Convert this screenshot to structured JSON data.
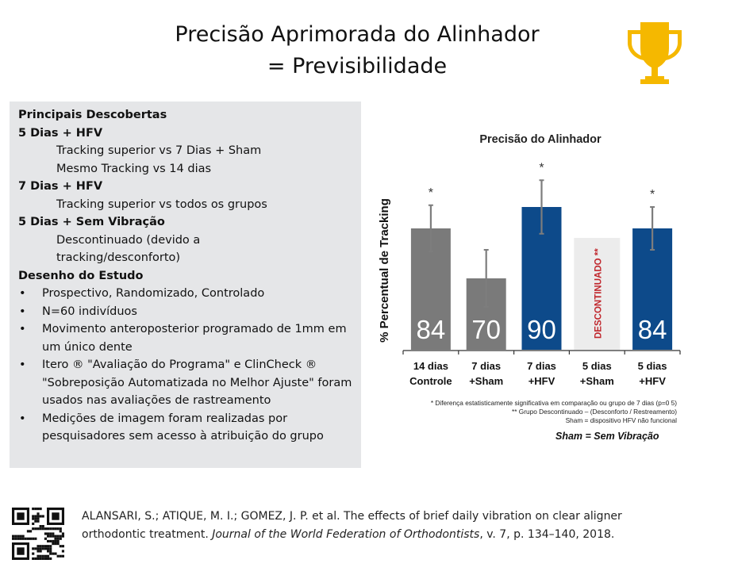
{
  "slide": {
    "title_line1": "Precisão Aprimorada do Alinhador",
    "title_line2": "= Previsibilidade",
    "icon": "trophy-icon",
    "accent_color": "#f5b800"
  },
  "findings": {
    "heading": "Principais Descobertas",
    "groups": [
      {
        "label": "5 Dias + HFV",
        "lines": [
          "Tracking superior vs 7 Dias + Sham",
          "Mesmo Tracking vs 14 dias"
        ]
      },
      {
        "label": "7 Dias + HFV",
        "lines": [
          "Tracking superior vs todos os grupos"
        ]
      },
      {
        "label": "5 Dias + Sem Vibração",
        "lines": [
          "Descontinuado (devido a",
          "tracking/desconforto)"
        ]
      }
    ],
    "design_heading": "Desenho do Estudo",
    "design_bullets": [
      "Prospectivo, Randomizado, Controlado",
      "N=60 indivíduos",
      "Movimento anteroposterior programado de 1mm em um único dente",
      "Itero ® \"Avaliação do Programa\" e ClinCheck ® \"Sobreposição Automatizada no Melhor Ajuste\" foram usados nas avaliações de rastreamento",
      "Medições de imagem foram realizadas por pesquisadores sem acesso à atribuição do grupo"
    ]
  },
  "chart_data": {
    "type": "bar",
    "title": "Precisão do Alinhador",
    "xlabel": "",
    "ylabel": "% Percentual de Tracking",
    "ylim": [
      50,
      100
    ],
    "grid": false,
    "categories": [
      {
        "line1": "14 dias",
        "line2": "Controle"
      },
      {
        "line1": "7 dias",
        "line2": "+Sham"
      },
      {
        "line1": "7 dias",
        "line2": "+HFV"
      },
      {
        "line1": "5 dias",
        "line2": "+Sham"
      },
      {
        "line1": "5 dias",
        "line2": "+HFV"
      }
    ],
    "values": [
      84,
      70,
      90,
      null,
      84
    ],
    "value_labels": [
      "84",
      "70",
      "90",
      "",
      "84"
    ],
    "error": [
      6.5,
      8,
      7.5,
      null,
      6
    ],
    "significance": [
      "*",
      "",
      "*",
      "",
      "*"
    ],
    "bar_colors": [
      "#7a7a7a",
      "#7a7a7a",
      "#0d4a8a",
      "#ececec",
      "#0d4a8a"
    ],
    "discontinued_label": "DESCONTINUADO **",
    "discontinued_color": "#c0272d",
    "footnotes": [
      "* Diferença estatisticamente significativa em comparação ou grupo de 7 dias (p=0 5)",
      "** Grupo Descontinuado – (Desconforto / Restreamento)",
      "Sham = dispositivo HFV não funcional"
    ]
  },
  "sham_note": "Sham = Sem Vibração",
  "citation": {
    "plain1": "ALANSARI, S.; ATIQUE, M. I.; GOMEZ, J. P. et al. The effects of brief daily vibration on clear aligner orthodontic treatment. ",
    "journal": "Journal of the World Federation of Orthodontists",
    "plain2": ", v. 7, p. 134–140, 2018.",
    "qr_icon": "qr-code-icon"
  }
}
